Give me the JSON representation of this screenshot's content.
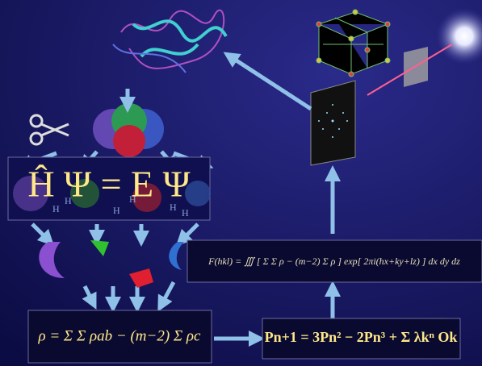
{
  "equations": {
    "schrodinger": "Ĥ Ψ = E Ψ",
    "structure_factor": "F(hkl) = ∭ [ Σ Σ ρ − (m−2) Σ ρ ] exp[ 2πi(hx+ky+lz) ] dx dy dz",
    "density": "ρ = Σ Σ ρab − (m−2) Σ ρc",
    "projection": "Pn+1 = 3Pn² − 2Pn³ + Σ λkⁿ Ok"
  },
  "atom_label": "H"
}
